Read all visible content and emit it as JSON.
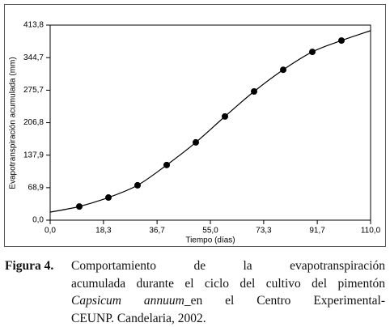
{
  "chart_data": {
    "type": "scatter",
    "x_label": "Tiempo (días)",
    "y_label": "Evapotranspiración acumulada (mm)",
    "x": [
      10,
      20,
      30,
      40,
      50,
      60,
      70,
      80,
      90,
      100
    ],
    "values": [
      29,
      48,
      74,
      117,
      165,
      220,
      273,
      319,
      357,
      381
    ],
    "color": "#000000",
    "curve": {
      "x": [
        0,
        10,
        20,
        30,
        40,
        50,
        60,
        70,
        80,
        90,
        100,
        110
      ],
      "values": [
        17,
        29,
        48,
        74,
        117,
        165,
        220,
        273,
        319,
        357,
        381,
        402
      ]
    },
    "xlim": [
      0,
      110
    ],
    "ylim": [
      0,
      413.8
    ],
    "xticks": [
      {
        "value": 0,
        "label": "0,0"
      },
      {
        "value": 18.3,
        "label": "18,3"
      },
      {
        "value": 36.7,
        "label": "36,7"
      },
      {
        "value": 55,
        "label": "55,0"
      },
      {
        "value": 73.3,
        "label": "73,3"
      },
      {
        "value": 91.7,
        "label": "91,7"
      },
      {
        "value": 110,
        "label": "110,0"
      }
    ],
    "yticks": [
      {
        "value": 0,
        "label": "0,0"
      },
      {
        "value": 68.9,
        "label": "68,9"
      },
      {
        "value": 137.9,
        "label": "137,9"
      },
      {
        "value": 206.8,
        "label": "206,8"
      },
      {
        "value": 275.7,
        "label": "275,7"
      },
      {
        "value": 344.7,
        "label": "344,7"
      },
      {
        "value": 413.8,
        "label": "413,8"
      }
    ]
  },
  "caption": {
    "label": "Figura 4.",
    "lines": [
      "Comportamiento de la evapotranspiración",
      "acumulada durante el ciclo del cultivo del pimentón",
      "_en el Centro Experimental-",
      "CEUNP. Candelaria, 2002."
    ],
    "species": "Capsicum annuum"
  }
}
